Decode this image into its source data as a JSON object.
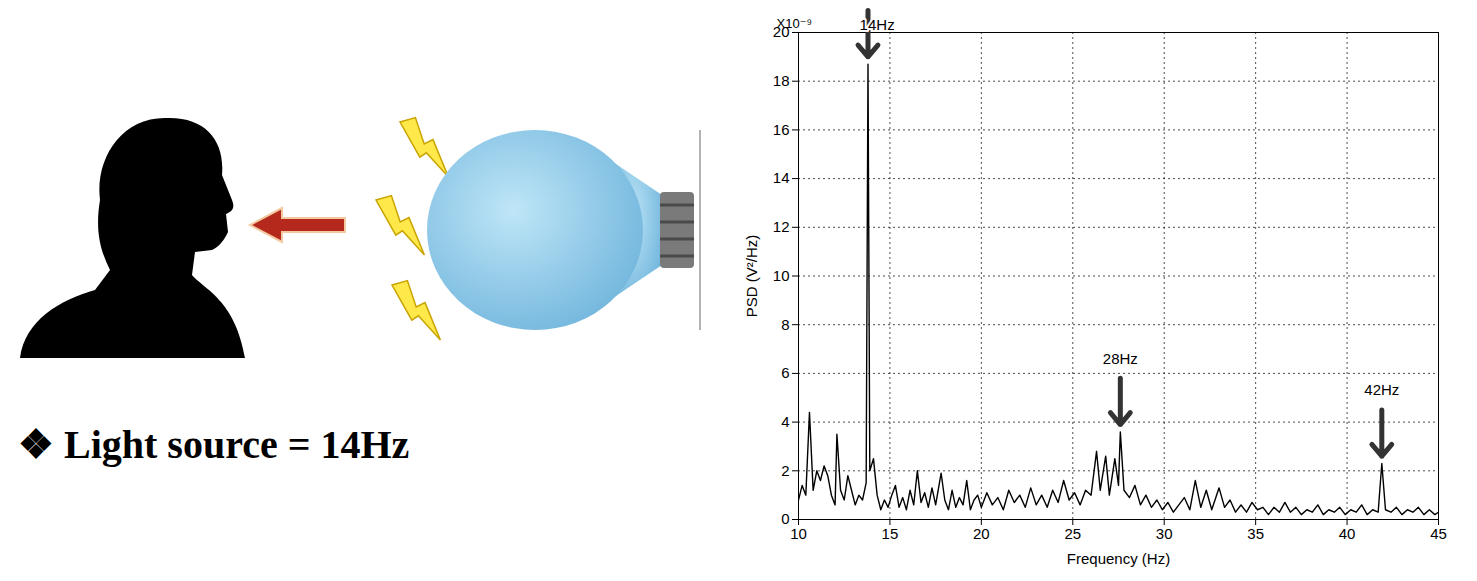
{
  "illustration": {
    "caption": "❖ Light source = 14Hz"
  },
  "chart_data": {
    "type": "line",
    "x_label": "Frequency (Hz)",
    "y_label": "PSD (V²/Hz)",
    "y_multiplier": "X10⁻⁹",
    "color": "#000000",
    "grid": true,
    "xlim": [
      10,
      45
    ],
    "xticks": [
      10,
      15,
      20,
      25,
      30,
      35,
      40,
      45
    ],
    "ylim": [
      0,
      20
    ],
    "yticks": [
      0,
      2,
      4,
      6,
      8,
      10,
      12,
      14,
      16,
      18,
      20
    ],
    "x": [
      10.0,
      10.2,
      10.4,
      10.6,
      10.8,
      11.0,
      11.2,
      11.4,
      11.6,
      11.8,
      12.0,
      12.1,
      12.3,
      12.5,
      12.7,
      12.9,
      13.1,
      13.3,
      13.5,
      13.7,
      13.8,
      13.9,
      14.1,
      14.3,
      14.5,
      14.7,
      14.9,
      15.1,
      15.3,
      15.5,
      15.7,
      15.9,
      16.1,
      16.3,
      16.5,
      16.7,
      16.9,
      17.1,
      17.3,
      17.5,
      17.8,
      18.0,
      18.2,
      18.4,
      18.6,
      18.8,
      19.0,
      19.2,
      19.4,
      19.6,
      19.8,
      20.0,
      20.3,
      20.6,
      20.9,
      21.2,
      21.5,
      21.8,
      22.1,
      22.4,
      22.7,
      23.0,
      23.3,
      23.6,
      23.9,
      24.2,
      24.5,
      24.8,
      25.1,
      25.4,
      25.7,
      26.0,
      26.3,
      26.5,
      26.8,
      27.0,
      27.3,
      27.5,
      27.6,
      27.8,
      28.1,
      28.4,
      28.7,
      29.0,
      29.3,
      29.6,
      29.9,
      30.2,
      30.5,
      30.8,
      31.1,
      31.4,
      31.7,
      32.0,
      32.3,
      32.6,
      33.0,
      33.3,
      33.6,
      33.9,
      34.2,
      34.5,
      34.8,
      35.1,
      35.4,
      35.7,
      36.0,
      36.3,
      36.6,
      36.9,
      37.2,
      37.5,
      37.8,
      38.1,
      38.4,
      38.7,
      39.0,
      39.3,
      39.6,
      39.9,
      40.2,
      40.5,
      40.8,
      41.1,
      41.4,
      41.7,
      41.9,
      42.1,
      42.4,
      42.7,
      43.0,
      43.3,
      43.6,
      43.9,
      44.2,
      44.5,
      44.8,
      45.0
    ],
    "values": [
      0.8,
      1.4,
      1.0,
      4.4,
      1.2,
      2.0,
      1.6,
      2.2,
      1.8,
      1.0,
      0.6,
      3.5,
      1.2,
      0.8,
      1.8,
      1.2,
      0.6,
      1.0,
      0.8,
      1.5,
      18.7,
      2.0,
      2.5,
      1.0,
      0.4,
      0.8,
      0.5,
      1.0,
      1.4,
      0.5,
      0.9,
      0.4,
      1.2,
      0.6,
      2.0,
      0.7,
      1.1,
      0.5,
      1.3,
      0.6,
      1.9,
      0.8,
      0.4,
      1.2,
      0.5,
      0.9,
      0.6,
      1.6,
      0.4,
      0.8,
      1.0,
      0.5,
      1.1,
      0.6,
      0.9,
      0.4,
      1.2,
      0.7,
      1.0,
      0.5,
      1.3,
      0.6,
      1.0,
      0.5,
      1.2,
      0.7,
      1.6,
      0.8,
      1.1,
      0.6,
      1.2,
      1.0,
      2.8,
      1.2,
      2.6,
      1.0,
      2.5,
      1.4,
      3.6,
      1.2,
      0.9,
      1.4,
      0.6,
      1.0,
      0.5,
      0.8,
      0.4,
      0.7,
      0.3,
      0.6,
      0.9,
      0.4,
      1.6,
      0.5,
      1.2,
      0.4,
      1.3,
      0.5,
      0.8,
      0.3,
      0.6,
      0.3,
      0.7,
      0.4,
      0.5,
      0.2,
      0.5,
      0.3,
      0.7,
      0.3,
      0.5,
      0.2,
      0.4,
      0.3,
      0.6,
      0.2,
      0.4,
      0.3,
      0.5,
      0.2,
      0.4,
      0.3,
      0.6,
      0.2,
      0.4,
      0.3,
      2.3,
      0.4,
      0.3,
      0.5,
      0.2,
      0.4,
      0.3,
      0.5,
      0.2,
      0.4,
      0.2,
      0.3
    ],
    "annotations": [
      {
        "text": "14Hz",
        "x": 13.8
      },
      {
        "text": "28Hz",
        "x": 27.6
      },
      {
        "text": "42Hz",
        "x": 41.9
      }
    ]
  }
}
